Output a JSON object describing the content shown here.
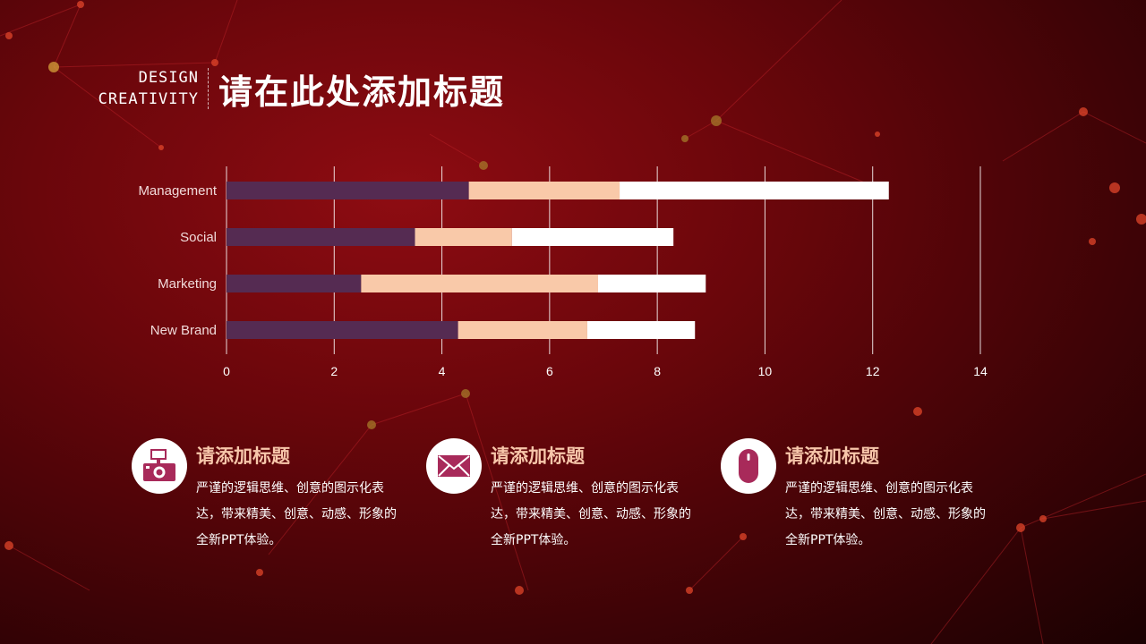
{
  "header": {
    "brand_line1": "DESIGN",
    "brand_line2": "CREATIVITY",
    "title": "请在此处添加标题"
  },
  "colors": {
    "series1": "#552b52",
    "series2": "#f9c9a9",
    "series3": "#ffffff",
    "card_title": "#f7c6aa",
    "icon": "#a82a5a"
  },
  "chart_data": {
    "type": "bar",
    "orientation": "horizontal",
    "stacked": true,
    "categories": [
      "Management",
      "Social",
      "Marketing",
      "New Brand"
    ],
    "series": [
      {
        "values": [
          4.5,
          3.5,
          2.5,
          4.3
        ]
      },
      {
        "values": [
          2.8,
          1.8,
          4.4,
          2.4
        ]
      },
      {
        "values": [
          5.0,
          3.0,
          2.0,
          2.0
        ]
      }
    ],
    "xlim": [
      0,
      14
    ],
    "xticks": [
      "0",
      "2",
      "4",
      "6",
      "8",
      "10",
      "12",
      "14"
    ],
    "grid": true,
    "legend": "none"
  },
  "cards": [
    {
      "icon": "camera-icon",
      "title": "请添加标题",
      "text": "严谨的逻辑思维、创意的图示化表达，带来精美、创意、动感、形象的全新PPT体验。"
    },
    {
      "icon": "envelope-icon",
      "title": "请添加标题",
      "text": "严谨的逻辑思维、创意的图示化表达，带来精美、创意、动感、形象的全新PPT体验。"
    },
    {
      "icon": "mouse-icon",
      "title": "请添加标题",
      "text": "严谨的逻辑思维、创意的图示化表达，带来精美、创意、动感、形象的全新PPT体验。"
    }
  ]
}
